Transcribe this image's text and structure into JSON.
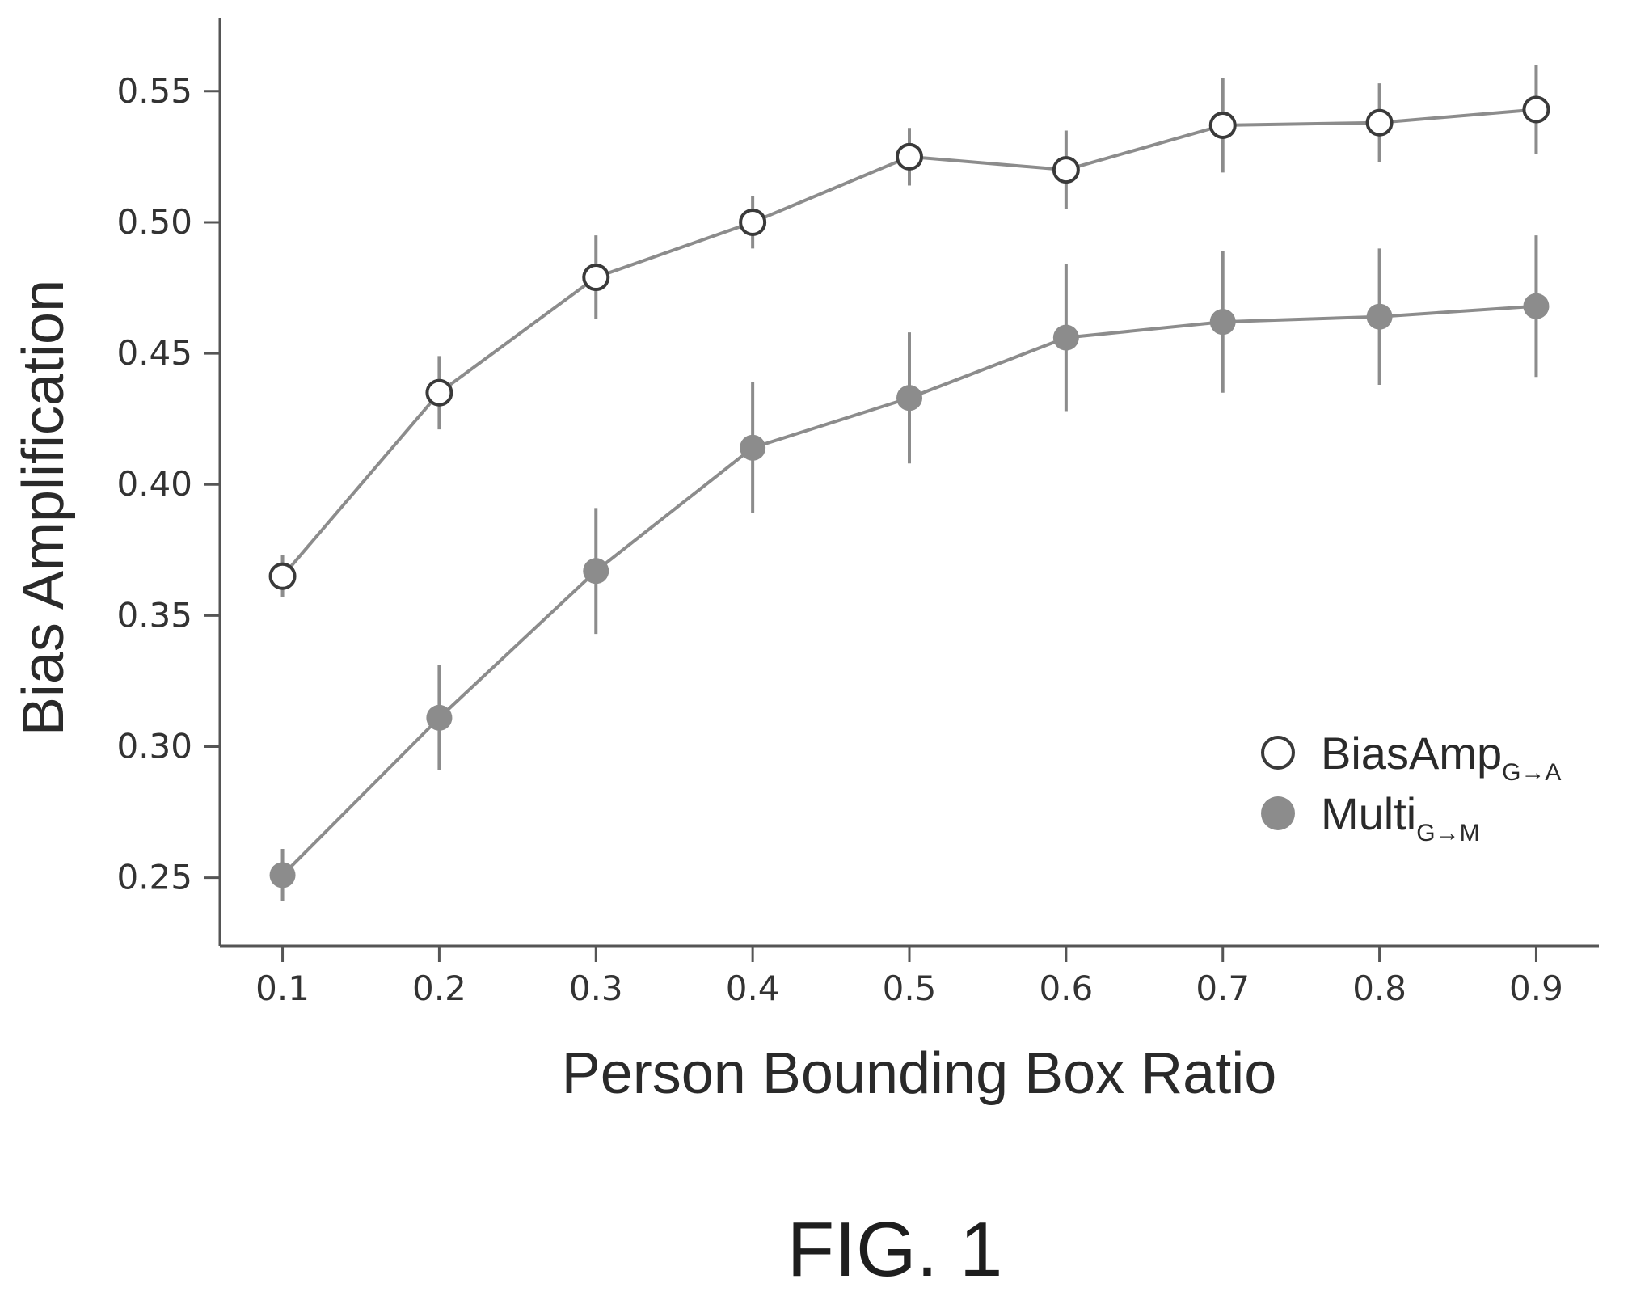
{
  "chart_data": {
    "type": "line",
    "xlabel": "Person Bounding Box Ratio",
    "ylabel": "Bias Amplification",
    "x": [
      0.1,
      0.2,
      0.3,
      0.4,
      0.5,
      0.6,
      0.7,
      0.8,
      0.9
    ],
    "x_tick_labels": [
      "0.1",
      "0.2",
      "0.3",
      "0.4",
      "0.5",
      "0.6",
      "0.7",
      "0.8",
      "0.9"
    ],
    "y_ticks": [
      0.25,
      0.3,
      0.35,
      0.4,
      0.45,
      0.5,
      0.55
    ],
    "y_tick_labels": [
      "0.25",
      "0.30",
      "0.35",
      "0.40",
      "0.45",
      "0.50",
      "0.55"
    ],
    "xlim": [
      0.06,
      0.94
    ],
    "ylim": [
      0.224,
      0.578
    ],
    "grid": false,
    "legend_position": "bottom-right",
    "series": [
      {
        "label": "BiasAmp",
        "label_sub": "G→A",
        "marker": "open-circle",
        "color": "#8c8c8c",
        "values": [
          0.365,
          0.435,
          0.479,
          0.5,
          0.525,
          0.52,
          0.537,
          0.538,
          0.543
        ],
        "error": [
          0.008,
          0.014,
          0.016,
          0.01,
          0.011,
          0.015,
          0.018,
          0.015,
          0.017
        ]
      },
      {
        "label": "Multi",
        "label_sub": "G→M",
        "marker": "filled-circle",
        "color": "#8c8c8c",
        "values": [
          0.251,
          0.311,
          0.367,
          0.414,
          0.433,
          0.456,
          0.462,
          0.464,
          0.468
        ],
        "error": [
          0.01,
          0.02,
          0.024,
          0.025,
          0.025,
          0.028,
          0.027,
          0.026,
          0.027
        ]
      }
    ]
  },
  "figure_label": "FIG. 1"
}
